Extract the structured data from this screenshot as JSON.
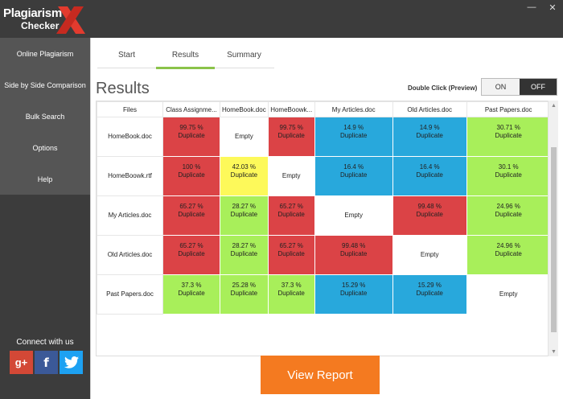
{
  "app": {
    "logo_line1": "Plagiarism",
    "logo_line2": "Checker",
    "logo_mark": "X",
    "window_controls": [
      "minimize-icon",
      "close-icon"
    ]
  },
  "sidebar": {
    "items": [
      {
        "label": "Online Plagiarism"
      },
      {
        "label": "Side by Side Comparison"
      },
      {
        "label": "Bulk Search"
      },
      {
        "label": "Options"
      },
      {
        "label": "Help"
      }
    ],
    "connect_label": "Connect with us",
    "socials": [
      {
        "icon": "google-plus-icon",
        "glyph": "g+",
        "color": "#d34836"
      },
      {
        "icon": "facebook-icon",
        "glyph": "f",
        "color": "#3b5998"
      },
      {
        "icon": "twitter-icon",
        "glyph": "🐦",
        "color": "#1da1f2"
      }
    ]
  },
  "tabs": [
    {
      "label": "Start",
      "active": false
    },
    {
      "label": "Results",
      "active": true
    },
    {
      "label": "Summary",
      "active": false
    }
  ],
  "results": {
    "title": "Results",
    "double_click_label": "Double Click (Preview)",
    "toggle_on": "ON",
    "toggle_off": "OFF",
    "toggle_state": "OFF"
  },
  "colors": {
    "red": "#db4346",
    "blue": "#28a8dc",
    "green": "#a8ef5a",
    "yellow": "#fdf95a",
    "accent_tab": "#8bc34a",
    "button": "#f47a20"
  },
  "table": {
    "columns": [
      "Files",
      "Class Assignme...",
      "HomeBook.doc",
      "HomeBoowk...",
      "My Articles.doc",
      "Old Articles.doc",
      "Past Papers.doc"
    ],
    "rows": [
      {
        "file": "HomeBook.doc",
        "cells": [
          {
            "pct": "99.75 %",
            "status": "Duplicate",
            "color": "red"
          },
          {
            "pct": "",
            "status": "Empty",
            "color": "white"
          },
          {
            "pct": "99.75 %",
            "status": "Duplicate",
            "color": "red"
          },
          {
            "pct": "14.9 %",
            "status": "Duplicate",
            "color": "blue"
          },
          {
            "pct": "14.9 %",
            "status": "Duplicate",
            "color": "blue"
          },
          {
            "pct": "30.71 %",
            "status": "Duplicate",
            "color": "green"
          }
        ]
      },
      {
        "file": "HomeBoowk.rtf",
        "cells": [
          {
            "pct": "100 %",
            "status": "Duplicate",
            "color": "red"
          },
          {
            "pct": "42.03 %",
            "status": "Duplicate",
            "color": "yellow"
          },
          {
            "pct": "",
            "status": "Empty",
            "color": "white"
          },
          {
            "pct": "16.4 %",
            "status": "Duplicate",
            "color": "blue"
          },
          {
            "pct": "16.4 %",
            "status": "Duplicate",
            "color": "blue"
          },
          {
            "pct": "30.1 %",
            "status": "Duplicate",
            "color": "green"
          }
        ]
      },
      {
        "file": "My Articles.doc",
        "cells": [
          {
            "pct": "65.27 %",
            "status": "Duplicate",
            "color": "red"
          },
          {
            "pct": "28.27 %",
            "status": "Duplicate",
            "color": "green"
          },
          {
            "pct": "65.27 %",
            "status": "Duplicate",
            "color": "red"
          },
          {
            "pct": "",
            "status": "Empty",
            "color": "white"
          },
          {
            "pct": "99.48 %",
            "status": "Duplicate",
            "color": "red"
          },
          {
            "pct": "24.96 %",
            "status": "Duplicate",
            "color": "green"
          }
        ]
      },
      {
        "file": "Old Articles.doc",
        "cells": [
          {
            "pct": "65.27 %",
            "status": "Duplicate",
            "color": "red"
          },
          {
            "pct": "28.27 %",
            "status": "Duplicate",
            "color": "green"
          },
          {
            "pct": "65.27 %",
            "status": "Duplicate",
            "color": "red"
          },
          {
            "pct": "99.48 %",
            "status": "Duplicate",
            "color": "red"
          },
          {
            "pct": "",
            "status": "Empty",
            "color": "white"
          },
          {
            "pct": "24.96 %",
            "status": "Duplicate",
            "color": "green"
          }
        ]
      },
      {
        "file": "Past Papers.doc",
        "cells": [
          {
            "pct": "37.3 %",
            "status": "Duplicate",
            "color": "green"
          },
          {
            "pct": "25.28 %",
            "status": "Duplicate",
            "color": "green"
          },
          {
            "pct": "37.3 %",
            "status": "Duplicate",
            "color": "green"
          },
          {
            "pct": "15.29 %",
            "status": "Duplicate",
            "color": "blue"
          },
          {
            "pct": "15.29 %",
            "status": "Duplicate",
            "color": "blue"
          },
          {
            "pct": "",
            "status": "Empty",
            "color": "white"
          }
        ]
      }
    ]
  },
  "view_report_label": "View Report"
}
